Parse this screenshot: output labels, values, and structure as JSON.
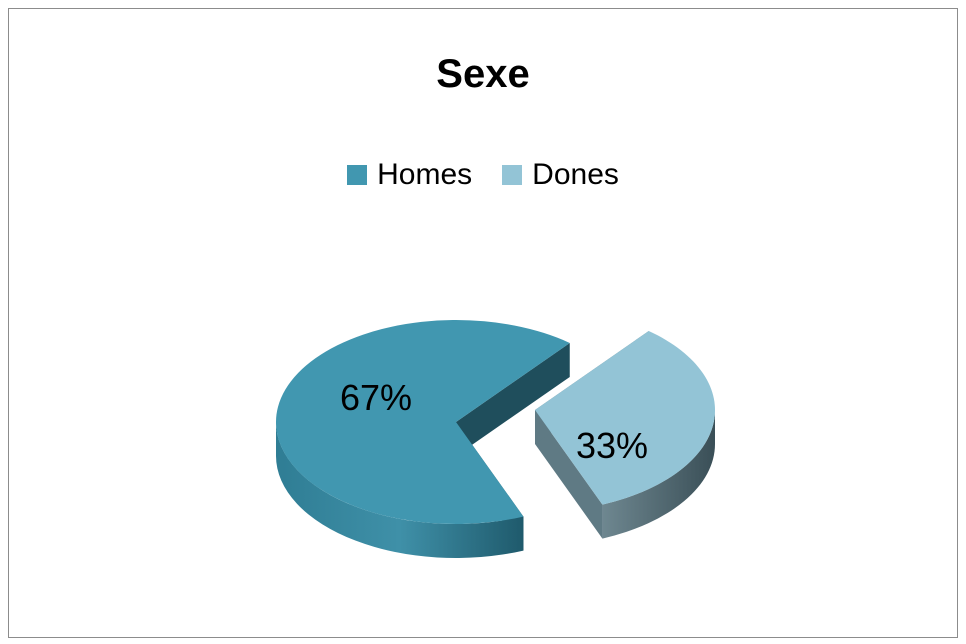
{
  "chart_data": {
    "type": "pie",
    "title": "Sexe",
    "categories": [
      "Homes",
      "Dones"
    ],
    "values": [
      67,
      33
    ],
    "labels": [
      "67%",
      "33%"
    ],
    "colors": [
      "#4197b0",
      "#93c4d6"
    ],
    "legend_position": "top",
    "style": "3d-exploded"
  }
}
